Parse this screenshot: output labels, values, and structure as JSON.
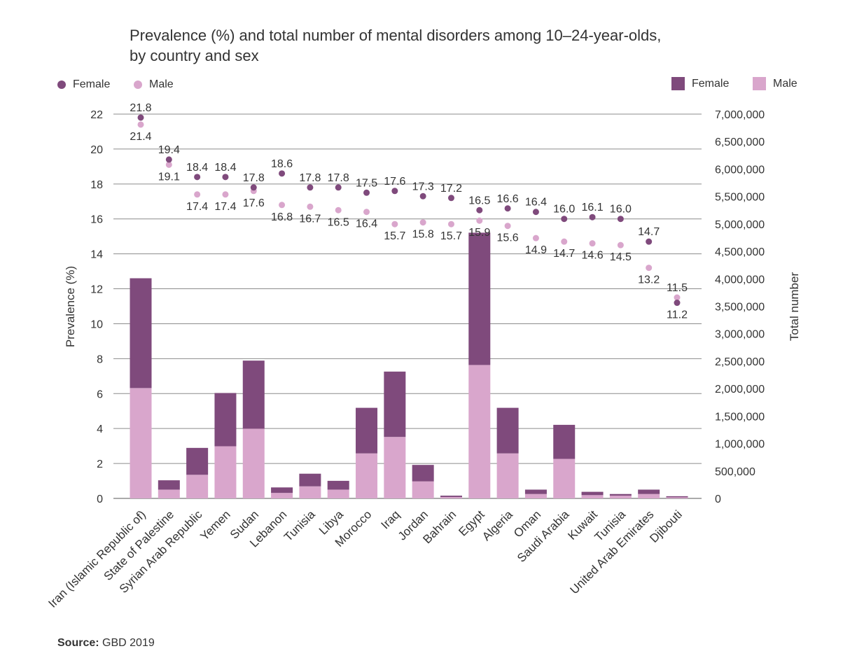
{
  "title_line1": "Prevalence (%) and total number of mental disorders among 10–24-year-olds,",
  "title_line2": "by country and sex",
  "legend": {
    "female_dot": "Female",
    "male_dot": "Male",
    "female_bar": "Female",
    "male_bar": "Male"
  },
  "source_label": "Source:",
  "source_value": "GBD 2019",
  "colors": {
    "female": "#7f4a7c",
    "male": "#d9a6cc",
    "grid": "#8c8c8c",
    "axis": "#555555"
  },
  "chart_data": {
    "type": "bar",
    "title": "Prevalence (%) and total number of mental disorders among 10–24-year-olds, by country and sex",
    "ylabel": "Prevalence (%)",
    "y2label": "Total number",
    "ylim": [
      0,
      22
    ],
    "y2lim": [
      0,
      7000000
    ],
    "y_ticks": [
      "0",
      "2",
      "4",
      "6",
      "8",
      "10",
      "12",
      "14",
      "16",
      "18",
      "20",
      "22"
    ],
    "y2_ticks": [
      "0",
      "500,000",
      "1,000,000",
      "1,500,000",
      "2,000,000",
      "2,500,000",
      "3,000,000",
      "3,500,000",
      "4,000,000",
      "4,500,000",
      "5,000,000",
      "5,500,000",
      "6,000,000",
      "6,500,000",
      "7,000,000"
    ],
    "grid": true,
    "categories": [
      "Iran (Islamic Republic of)",
      "State of Palestine",
      "Syrian Arab Republic",
      "Yemen",
      "Sudan",
      "Lebanon",
      "Tunisia",
      "Libya",
      "Morocco",
      "Iraq",
      "Jordan",
      "Bahrain",
      "Egypt",
      "Algeria",
      "Oman",
      "Saudi Arabia",
      "Kuwait",
      "Tunisia",
      "United Arab Emirates",
      "Djibouti"
    ],
    "series": [
      {
        "name": "Female",
        "kind": "bar",
        "axis": "right",
        "values": [
          2000000,
          170000,
          490000,
          970000,
          1240000,
          100000,
          230000,
          160000,
          830000,
          1190000,
          300000,
          25000,
          2410000,
          830000,
          80000,
          620000,
          60000,
          30000,
          80000,
          20000
        ]
      },
      {
        "name": "Male",
        "kind": "bar",
        "axis": "right",
        "values": [
          2010000,
          160000,
          430000,
          950000,
          1270000,
          100000,
          220000,
          160000,
          820000,
          1120000,
          310000,
          25000,
          2430000,
          820000,
          80000,
          720000,
          60000,
          50000,
          80000,
          20000
        ]
      },
      {
        "name": "Female",
        "kind": "dot",
        "axis": "left",
        "values": [
          21.8,
          19.4,
          18.4,
          18.4,
          17.8,
          18.6,
          17.8,
          17.8,
          17.5,
          17.6,
          17.3,
          17.2,
          16.5,
          16.6,
          16.4,
          16.0,
          16.1,
          16.0,
          14.7,
          11.2
        ],
        "labels": [
          "21.8",
          "19.4",
          "18.4",
          "18.4",
          "17.8",
          "18.6",
          "17.8",
          "17.8",
          "17.5",
          "17.6",
          "17.3",
          "17.2",
          "16.5",
          "16.6",
          "16.4",
          "16.0",
          "16.1",
          "16.0",
          "14.7",
          "11.2"
        ]
      },
      {
        "name": "Male",
        "kind": "dot",
        "axis": "left",
        "values": [
          21.4,
          19.1,
          17.4,
          17.4,
          17.6,
          16.8,
          16.7,
          16.5,
          16.4,
          15.7,
          15.8,
          15.7,
          15.9,
          15.6,
          14.9,
          14.7,
          14.6,
          14.5,
          13.2,
          11.5
        ],
        "labels": [
          "21.4",
          "19.1",
          "17.4",
          "17.4",
          "17.6",
          "16.8",
          "16.7",
          "16.5",
          "16.4",
          "15.7",
          "15.8",
          "15.7",
          "15.9",
          "15.6",
          "14.9",
          "14.7",
          "14.6",
          "14.5",
          "13.2",
          "11.5"
        ]
      }
    ]
  }
}
